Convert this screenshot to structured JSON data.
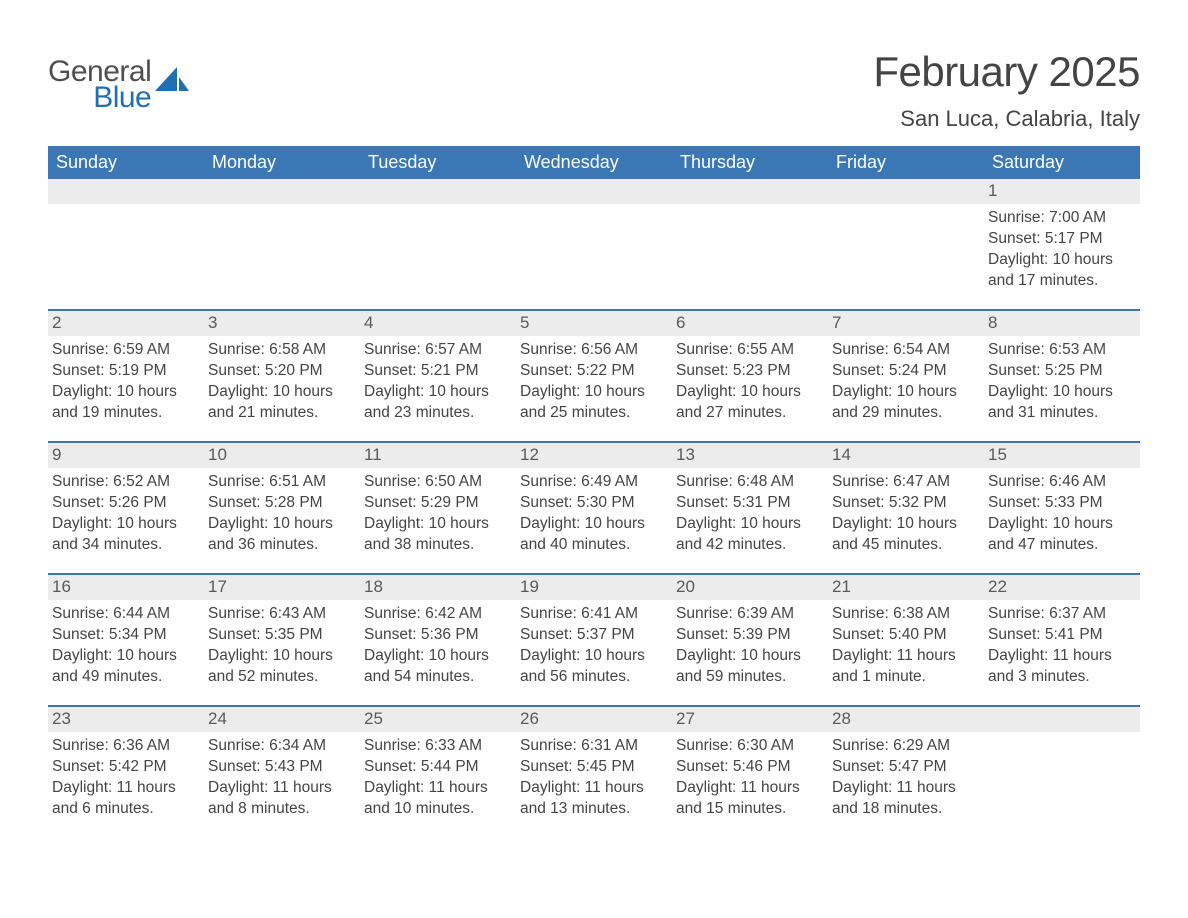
{
  "brand": {
    "general": "General",
    "blue": "Blue"
  },
  "title": "February 2025",
  "location": "San Luca, Calabria, Italy",
  "colors": {
    "header_bg": "#3b77b5",
    "header_text": "#ffffff",
    "row_divider": "#3b77b5",
    "daynum_bg": "#ececec",
    "text": "#444444",
    "logo_blue": "#1f6fb2"
  },
  "weekdays": [
    "Sunday",
    "Monday",
    "Tuesday",
    "Wednesday",
    "Thursday",
    "Friday",
    "Saturday"
  ],
  "weeks": [
    [
      {
        "empty": true
      },
      {
        "empty": true
      },
      {
        "empty": true
      },
      {
        "empty": true
      },
      {
        "empty": true
      },
      {
        "empty": true
      },
      {
        "n": "1",
        "sunrise": "Sunrise: 7:00 AM",
        "sunset": "Sunset: 5:17 PM",
        "daylight": "Daylight: 10 hours and 17 minutes."
      }
    ],
    [
      {
        "n": "2",
        "sunrise": "Sunrise: 6:59 AM",
        "sunset": "Sunset: 5:19 PM",
        "daylight": "Daylight: 10 hours and 19 minutes."
      },
      {
        "n": "3",
        "sunrise": "Sunrise: 6:58 AM",
        "sunset": "Sunset: 5:20 PM",
        "daylight": "Daylight: 10 hours and 21 minutes."
      },
      {
        "n": "4",
        "sunrise": "Sunrise: 6:57 AM",
        "sunset": "Sunset: 5:21 PM",
        "daylight": "Daylight: 10 hours and 23 minutes."
      },
      {
        "n": "5",
        "sunrise": "Sunrise: 6:56 AM",
        "sunset": "Sunset: 5:22 PM",
        "daylight": "Daylight: 10 hours and 25 minutes."
      },
      {
        "n": "6",
        "sunrise": "Sunrise: 6:55 AM",
        "sunset": "Sunset: 5:23 PM",
        "daylight": "Daylight: 10 hours and 27 minutes."
      },
      {
        "n": "7",
        "sunrise": "Sunrise: 6:54 AM",
        "sunset": "Sunset: 5:24 PM",
        "daylight": "Daylight: 10 hours and 29 minutes."
      },
      {
        "n": "8",
        "sunrise": "Sunrise: 6:53 AM",
        "sunset": "Sunset: 5:25 PM",
        "daylight": "Daylight: 10 hours and 31 minutes."
      }
    ],
    [
      {
        "n": "9",
        "sunrise": "Sunrise: 6:52 AM",
        "sunset": "Sunset: 5:26 PM",
        "daylight": "Daylight: 10 hours and 34 minutes."
      },
      {
        "n": "10",
        "sunrise": "Sunrise: 6:51 AM",
        "sunset": "Sunset: 5:28 PM",
        "daylight": "Daylight: 10 hours and 36 minutes."
      },
      {
        "n": "11",
        "sunrise": "Sunrise: 6:50 AM",
        "sunset": "Sunset: 5:29 PM",
        "daylight": "Daylight: 10 hours and 38 minutes."
      },
      {
        "n": "12",
        "sunrise": "Sunrise: 6:49 AM",
        "sunset": "Sunset: 5:30 PM",
        "daylight": "Daylight: 10 hours and 40 minutes."
      },
      {
        "n": "13",
        "sunrise": "Sunrise: 6:48 AM",
        "sunset": "Sunset: 5:31 PM",
        "daylight": "Daylight: 10 hours and 42 minutes."
      },
      {
        "n": "14",
        "sunrise": "Sunrise: 6:47 AM",
        "sunset": "Sunset: 5:32 PM",
        "daylight": "Daylight: 10 hours and 45 minutes."
      },
      {
        "n": "15",
        "sunrise": "Sunrise: 6:46 AM",
        "sunset": "Sunset: 5:33 PM",
        "daylight": "Daylight: 10 hours and 47 minutes."
      }
    ],
    [
      {
        "n": "16",
        "sunrise": "Sunrise: 6:44 AM",
        "sunset": "Sunset: 5:34 PM",
        "daylight": "Daylight: 10 hours and 49 minutes."
      },
      {
        "n": "17",
        "sunrise": "Sunrise: 6:43 AM",
        "sunset": "Sunset: 5:35 PM",
        "daylight": "Daylight: 10 hours and 52 minutes."
      },
      {
        "n": "18",
        "sunrise": "Sunrise: 6:42 AM",
        "sunset": "Sunset: 5:36 PM",
        "daylight": "Daylight: 10 hours and 54 minutes."
      },
      {
        "n": "19",
        "sunrise": "Sunrise: 6:41 AM",
        "sunset": "Sunset: 5:37 PM",
        "daylight": "Daylight: 10 hours and 56 minutes."
      },
      {
        "n": "20",
        "sunrise": "Sunrise: 6:39 AM",
        "sunset": "Sunset: 5:39 PM",
        "daylight": "Daylight: 10 hours and 59 minutes."
      },
      {
        "n": "21",
        "sunrise": "Sunrise: 6:38 AM",
        "sunset": "Sunset: 5:40 PM",
        "daylight": "Daylight: 11 hours and 1 minute."
      },
      {
        "n": "22",
        "sunrise": "Sunrise: 6:37 AM",
        "sunset": "Sunset: 5:41 PM",
        "daylight": "Daylight: 11 hours and 3 minutes."
      }
    ],
    [
      {
        "n": "23",
        "sunrise": "Sunrise: 6:36 AM",
        "sunset": "Sunset: 5:42 PM",
        "daylight": "Daylight: 11 hours and 6 minutes."
      },
      {
        "n": "24",
        "sunrise": "Sunrise: 6:34 AM",
        "sunset": "Sunset: 5:43 PM",
        "daylight": "Daylight: 11 hours and 8 minutes."
      },
      {
        "n": "25",
        "sunrise": "Sunrise: 6:33 AM",
        "sunset": "Sunset: 5:44 PM",
        "daylight": "Daylight: 11 hours and 10 minutes."
      },
      {
        "n": "26",
        "sunrise": "Sunrise: 6:31 AM",
        "sunset": "Sunset: 5:45 PM",
        "daylight": "Daylight: 11 hours and 13 minutes."
      },
      {
        "n": "27",
        "sunrise": "Sunrise: 6:30 AM",
        "sunset": "Sunset: 5:46 PM",
        "daylight": "Daylight: 11 hours and 15 minutes."
      },
      {
        "n": "28",
        "sunrise": "Sunrise: 6:29 AM",
        "sunset": "Sunset: 5:47 PM",
        "daylight": "Daylight: 11 hours and 18 minutes."
      },
      {
        "empty": true
      }
    ]
  ]
}
